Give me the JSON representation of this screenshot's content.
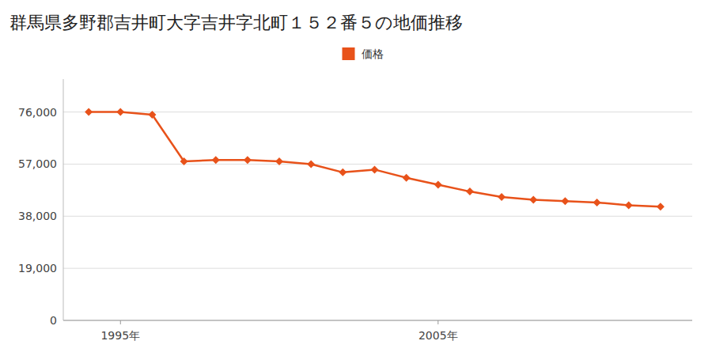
{
  "chart_data": {
    "type": "line",
    "title": "群馬県多野郡吉井町大字吉井字北町１５２番５の地価推移",
    "x": [
      1994,
      1995,
      1996,
      1997,
      1998,
      1999,
      2000,
      2001,
      2002,
      2003,
      2004,
      2005,
      2006,
      2007,
      2008,
      2009,
      2010,
      2011,
      2012
    ],
    "series": [
      {
        "name": "価格",
        "color": "#e8521a",
        "marker": "diamond",
        "values": [
          76000,
          76000,
          75000,
          58000,
          58500,
          58500,
          58000,
          57000,
          54000,
          55000,
          52000,
          49500,
          47000,
          45000,
          44000,
          43500,
          43000,
          42000,
          41500
        ]
      }
    ],
    "xlim": [
      1993.2,
      2013.0
    ],
    "xticks": [
      {
        "value": 1995,
        "label": "1995年"
      },
      {
        "value": 2005,
        "label": "2005年"
      }
    ],
    "ylim": [
      0,
      88000
    ],
    "yticks": [
      0,
      {
        "value": 19000,
        "label": "19,000"
      },
      {
        "value": 38000,
        "label": "38,000"
      },
      {
        "value": 57000,
        "label": "57,000"
      },
      {
        "value": 76000,
        "label": "76,000"
      }
    ],
    "grid": true,
    "legend": "top"
  }
}
